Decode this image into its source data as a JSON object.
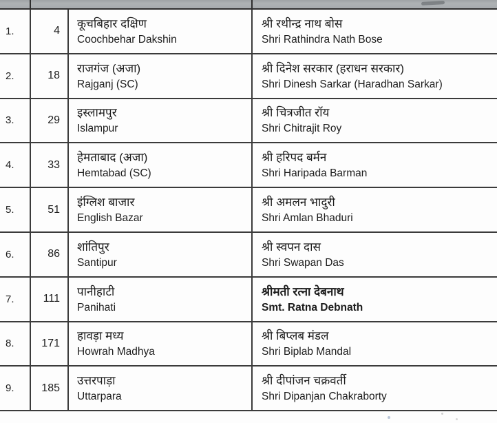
{
  "colors": {
    "header_band": "#a9adb0",
    "grid_line": "#3b3b3b",
    "text": "#1c1c1c",
    "background": "#fdfdfd"
  },
  "table": {
    "rows": [
      {
        "sno": "1.",
        "ac_no": "4",
        "name_hi": "कूचबिहार दक्षिण",
        "name_en": "Coochbehar Dakshin",
        "candidate_hi": "श्री रथीन्द्र नाथ बोस",
        "candidate_en": "Shri Rathindra Nath Bose",
        "emphasis": false
      },
      {
        "sno": "2.",
        "ac_no": "18",
        "name_hi": "राजगंज (अजा)",
        "name_en": "Rajganj (SC)",
        "candidate_hi": "श्री दिनेश सरकार (हराधन सरकार)",
        "candidate_en": "Shri Dinesh Sarkar (Haradhan Sarkar)",
        "emphasis": false
      },
      {
        "sno": "3.",
        "ac_no": "29",
        "name_hi": "इस्लामपुर",
        "name_en": "Islampur",
        "candidate_hi": "श्री चित्रजीत रॉय",
        "candidate_en": "Shri Chitrajit Roy",
        "emphasis": false
      },
      {
        "sno": "4.",
        "ac_no": "33",
        "name_hi": "हेमताबाद (अजा)",
        "name_en": "Hemtabad (SC)",
        "candidate_hi": "श्री हरिपद बर्मन",
        "candidate_en": "Shri Haripada Barman",
        "emphasis": false
      },
      {
        "sno": "5.",
        "ac_no": "51",
        "name_hi": "इंग्लिश बाजार",
        "name_en": "English Bazar",
        "candidate_hi": "श्री अमलन भादुरी",
        "candidate_en": "Shri Amlan Bhaduri",
        "emphasis": false
      },
      {
        "sno": "6.",
        "ac_no": "86",
        "name_hi": "शांतिपुर",
        "name_en": "Santipur",
        "candidate_hi": "श्री स्वपन दास",
        "candidate_en": "Shri Swapan Das",
        "emphasis": false
      },
      {
        "sno": "7.",
        "ac_no": "111",
        "name_hi": "पानीहाटी",
        "name_en": "Panihati",
        "candidate_hi": "श्रीमती रत्ना देबनाथ",
        "candidate_en": "Smt. Ratna Debnath",
        "emphasis": true
      },
      {
        "sno": "8.",
        "ac_no": "171",
        "name_hi": "हावड़ा मध्य",
        "name_en": "Howrah Madhya",
        "candidate_hi": "श्री बिप्लब मंडल",
        "candidate_en": "Shri Biplab Mandal",
        "emphasis": false
      },
      {
        "sno": "9.",
        "ac_no": "185",
        "name_hi": "उत्तरपाड़ा",
        "name_en": "Uttarpara",
        "candidate_hi": "श्री दीपांजन चक्रवर्ती",
        "candidate_en": "Shri Dipanjan Chakraborty",
        "emphasis": false
      }
    ]
  }
}
